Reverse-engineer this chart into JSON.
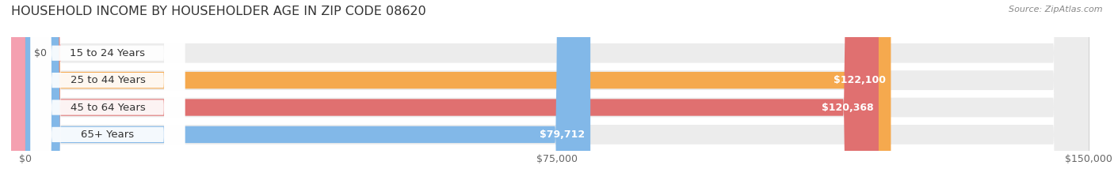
{
  "title": "HOUSEHOLD INCOME BY HOUSEHOLDER AGE IN ZIP CODE 08620",
  "source": "Source: ZipAtlas.com",
  "categories": [
    "15 to 24 Years",
    "25 to 44 Years",
    "45 to 64 Years",
    "65+ Years"
  ],
  "values": [
    0,
    122100,
    120368,
    79712
  ],
  "bar_colors": [
    "#f4a0b0",
    "#f5a94e",
    "#e07070",
    "#82b8e8"
  ],
  "bar_bg_color": "#f0f0f0",
  "track_color": "#e8e8e8",
  "label_colors": [
    "#000000",
    "#ffffff",
    "#ffffff",
    "#000000"
  ],
  "value_labels": [
    "$0",
    "$122,100",
    "$120,368",
    "$79,712"
  ],
  "x_ticks": [
    0,
    75000,
    150000
  ],
  "x_tick_labels": [
    "$0",
    "$75,000",
    "$150,000"
  ],
  "xlim": [
    0,
    150000
  ],
  "figsize": [
    14.06,
    2.33
  ],
  "dpi": 100
}
